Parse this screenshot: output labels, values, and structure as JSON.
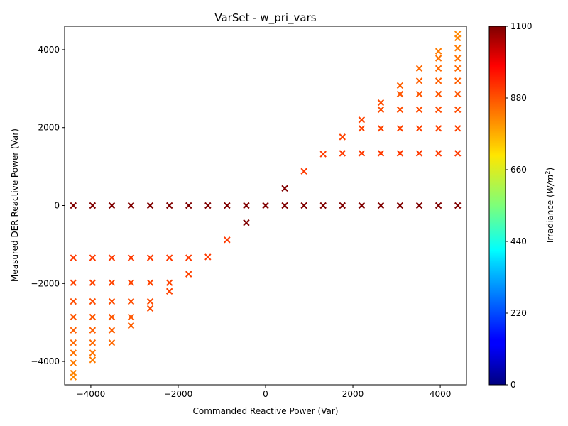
{
  "chart_data": {
    "type": "scatter",
    "title": "VarSet - w_pri_vars",
    "xlabel": "Commanded Reactive Power (Var)",
    "ylabel": "Measured DER Reactive Power (Var)",
    "xlim": [
      -4600,
      4600
    ],
    "ylim": [
      -4600,
      4600
    ],
    "xticks": [
      -4000,
      -2000,
      0,
      2000,
      4000
    ],
    "xtick_labels": [
      "−4000",
      "−2000",
      "0",
      "2000",
      "4000"
    ],
    "yticks": [
      -4000,
      -2000,
      0,
      2000,
      4000
    ],
    "ytick_labels": [
      "−4000",
      "−2000",
      "0",
      "2000",
      "4000"
    ],
    "marker": "x",
    "grid": false,
    "colorbar": {
      "label_main": "Irradiance (",
      "label_unit": "W/m",
      "label_exp": "2",
      "label_close": ")",
      "range": [
        0,
        1100
      ],
      "ticks": [
        0,
        220,
        440,
        660,
        880,
        1100
      ],
      "colormap": "jet"
    },
    "commanded": [
      -4400,
      -3960,
      -3520,
      -3080,
      -2640,
      -2200,
      -1760,
      -1320,
      -880,
      -440,
      0,
      440,
      880,
      1320,
      1760,
      2200,
      2640,
      3080,
      3520,
      3960,
      4400
    ],
    "measured_by_commanded": [
      [
        -4400,
        -4300,
        -4040,
        -3780,
        -3520,
        -3200,
        -2860,
        -2460,
        -1980,
        -1340,
        0
      ],
      [
        -3960,
        -3780,
        -3520,
        -3200,
        -2860,
        -2460,
        -1980,
        -1340,
        0
      ],
      [
        -3520,
        -3200,
        -2860,
        -2460,
        -1980,
        -1340,
        0
      ],
      [
        -3080,
        -2860,
        -2460,
        -1980,
        -1340,
        0
      ],
      [
        -2640,
        -2460,
        -1980,
        -1340,
        0
      ],
      [
        -2200,
        -1980,
        -1340,
        0
      ],
      [
        -1760,
        -1340,
        0
      ],
      [
        -1320,
        0
      ],
      [
        -880,
        0
      ],
      [
        -440,
        0
      ],
      [
        0
      ],
      [
        440,
        0
      ],
      [
        880,
        0
      ],
      [
        1320,
        0
      ],
      [
        1760,
        1340,
        0
      ],
      [
        2200,
        1980,
        1340,
        0
      ],
      [
        2640,
        2460,
        1980,
        1340,
        0
      ],
      [
        3080,
        2860,
        2460,
        1980,
        1340,
        0
      ],
      [
        3520,
        3200,
        2860,
        2460,
        1980,
        1340,
        0
      ],
      [
        3960,
        3780,
        3520,
        3200,
        2860,
        2460,
        1980,
        1340,
        0
      ],
      [
        4400,
        4300,
        4040,
        3780,
        3520,
        3200,
        2860,
        2460,
        1980,
        1340,
        0
      ]
    ],
    "irradiance_by_measured_magnitude": [
      [
        0,
        1100
      ],
      [
        1340,
        900
      ],
      [
        1980,
        890
      ],
      [
        2460,
        880
      ],
      [
        2860,
        870
      ],
      [
        3200,
        860
      ],
      [
        3520,
        850
      ],
      [
        3780,
        840
      ],
      [
        4040,
        830
      ],
      [
        4300,
        820
      ],
      [
        4400,
        815
      ]
    ]
  }
}
